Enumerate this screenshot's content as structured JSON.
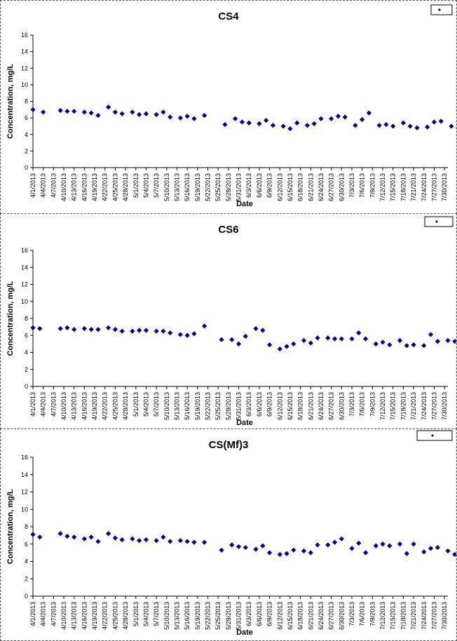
{
  "charts": [
    {
      "chart_data": {
        "type": "scatter",
        "title": "CS4",
        "xlabel": "Date",
        "ylabel": "Concentration, mg/L",
        "ylim": [
          0,
          16
        ],
        "yticks": [
          0,
          2,
          4,
          6,
          8,
          10,
          12,
          14,
          16
        ],
        "xticks": [
          "4/1/2013",
          "4/4/2013",
          "4/7/2013",
          "4/10/2013",
          "4/13/2013",
          "4/16/2013",
          "4/19/2013",
          "4/22/2013",
          "4/25/2013",
          "4/28/2013",
          "5/1/2013",
          "5/4/2013",
          "5/7/2013",
          "5/10/2013",
          "5/13/2013",
          "5/16/2013",
          "5/19/2013",
          "5/22/2013",
          "5/25/2013",
          "5/28/2013",
          "5/31/2013",
          "6/3/2013",
          "6/6/2013",
          "6/9/2013",
          "6/12/2013",
          "6/15/2013",
          "6/18/2013",
          "6/21/2013",
          "6/24/2013",
          "6/27/2013",
          "6/30/2013",
          "7/3/2013",
          "7/6/2013",
          "7/9/2013",
          "7/12/2013",
          "7/15/2013",
          "7/18/2013",
          "7/21/2013",
          "7/24/2013",
          "7/27/2013",
          "7/30/2013"
        ],
        "xlim": [
          "4/1/2013",
          "7/31/2013"
        ],
        "grid": false,
        "legend": "top-right",
        "marker_color": "#00008B",
        "series": [
          {
            "points": [
              [
                "4/1/2013",
                7.0
              ],
              [
                "4/4/2013",
                6.7
              ],
              [
                "4/9/2013",
                6.9
              ],
              [
                "4/11/2013",
                6.8
              ],
              [
                "4/13/2013",
                6.8
              ],
              [
                "4/16/2013",
                6.7
              ],
              [
                "4/18/2013",
                6.6
              ],
              [
                "4/20/2013",
                6.3
              ],
              [
                "4/23/2013",
                7.3
              ],
              [
                "4/25/2013",
                6.7
              ],
              [
                "4/27/2013",
                6.5
              ],
              [
                "4/30/2013",
                6.7
              ],
              [
                "5/2/2013",
                6.4
              ],
              [
                "5/4/2013",
                6.5
              ],
              [
                "5/7/2013",
                6.4
              ],
              [
                "5/9/2013",
                6.7
              ],
              [
                "5/11/2013",
                6.1
              ],
              [
                "5/14/2013",
                6.0
              ],
              [
                "5/16/2013",
                6.2
              ],
              [
                "5/18/2013",
                5.9
              ],
              [
                "5/21/2013",
                6.3
              ],
              [
                "5/27/2013",
                5.2
              ],
              [
                "5/30/2013",
                5.9
              ],
              [
                "6/1/2013",
                5.5
              ],
              [
                "6/3/2013",
                5.4
              ],
              [
                "6/6/2013",
                5.3
              ],
              [
                "6/8/2013",
                5.7
              ],
              [
                "6/10/2013",
                5.1
              ],
              [
                "6/13/2013",
                5.0
              ],
              [
                "6/15/2013",
                4.7
              ],
              [
                "6/17/2013",
                5.4
              ],
              [
                "6/20/2013",
                5.1
              ],
              [
                "6/22/2013",
                5.3
              ],
              [
                "6/24/2013",
                5.9
              ],
              [
                "6/27/2013",
                5.9
              ],
              [
                "6/29/2013",
                6.2
              ],
              [
                "7/1/2013",
                6.1
              ],
              [
                "7/4/2013",
                5.1
              ],
              [
                "7/6/2013",
                5.8
              ],
              [
                "7/8/2013",
                6.6
              ],
              [
                "7/11/2013",
                5.1
              ],
              [
                "7/13/2013",
                5.2
              ],
              [
                "7/15/2013",
                5.0
              ],
              [
                "7/18/2013",
                5.4
              ],
              [
                "7/20/2013",
                5.0
              ],
              [
                "7/22/2013",
                4.8
              ],
              [
                "7/25/2013",
                4.9
              ],
              [
                "7/27/2013",
                5.5
              ],
              [
                "7/29/2013",
                5.6
              ],
              [
                "8/1/2013",
                5.0
              ],
              [
                "8/3/2013",
                4.8
              ]
            ]
          }
        ]
      }
    },
    {
      "chart_data": {
        "type": "scatter",
        "title": "CS6",
        "xlabel": "Date",
        "ylabel": "Concentration, mg/L",
        "ylim": [
          0,
          16
        ],
        "yticks": [
          0,
          2,
          4,
          6,
          8,
          10,
          12,
          14,
          16
        ],
        "xticks": [
          "4/1/2013",
          "4/4/2013",
          "4/7/2013",
          "4/10/2013",
          "4/13/2013",
          "4/16/2013",
          "4/19/2013",
          "4/22/2013",
          "4/25/2013",
          "4/28/2013",
          "5/1/2013",
          "5/4/2013",
          "5/7/2013",
          "5/10/2013",
          "5/13/2013",
          "5/16/2013",
          "5/19/2013",
          "5/22/2013",
          "5/25/2013",
          "5/28/2013",
          "5/31/2013",
          "6/3/2013",
          "6/6/2013",
          "6/9/2013",
          "6/12/2013",
          "6/15/2013",
          "6/18/2013",
          "6/21/2013",
          "6/24/2013",
          "6/27/2013",
          "6/30/2013",
          "7/3/2013",
          "7/6/2013",
          "7/9/2013",
          "7/12/2013",
          "7/15/2013",
          "7/18/2013",
          "7/21/2013",
          "7/24/2013",
          "7/27/2013",
          "7/30/2013"
        ],
        "xlim": [
          "4/1/2013",
          "7/31/2013"
        ],
        "grid": false,
        "legend": "top-right",
        "marker_color": "#00008B",
        "series": [
          {
            "points": [
              [
                "4/1/2013",
                6.9
              ],
              [
                "4/3/2013",
                6.8
              ],
              [
                "4/9/2013",
                6.8
              ],
              [
                "4/11/2013",
                6.9
              ],
              [
                "4/13/2013",
                6.7
              ],
              [
                "4/16/2013",
                6.8
              ],
              [
                "4/18/2013",
                6.7
              ],
              [
                "4/20/2013",
                6.7
              ],
              [
                "4/23/2013",
                6.9
              ],
              [
                "4/25/2013",
                6.7
              ],
              [
                "4/27/2013",
                6.5
              ],
              [
                "4/30/2013",
                6.5
              ],
              [
                "5/2/2013",
                6.6
              ],
              [
                "5/4/2013",
                6.6
              ],
              [
                "5/7/2013",
                6.5
              ],
              [
                "5/9/2013",
                6.5
              ],
              [
                "5/11/2013",
                6.3
              ],
              [
                "5/14/2013",
                6.1
              ],
              [
                "5/16/2013",
                6.0
              ],
              [
                "5/18/2013",
                6.2
              ],
              [
                "5/21/2013",
                7.1
              ],
              [
                "5/26/2013",
                5.5
              ],
              [
                "5/29/2013",
                5.5
              ],
              [
                "5/31/2013",
                5.0
              ],
              [
                "6/2/2013",
                5.9
              ],
              [
                "6/5/2013",
                6.8
              ],
              [
                "6/7/2013",
                6.6
              ],
              [
                "6/9/2013",
                4.9
              ],
              [
                "6/12/2013",
                4.4
              ],
              [
                "6/14/2013",
                4.7
              ],
              [
                "6/16/2013",
                5.0
              ],
              [
                "6/19/2013",
                5.4
              ],
              [
                "6/21/2013",
                5.1
              ],
              [
                "6/23/2013",
                5.7
              ],
              [
                "6/26/2013",
                5.7
              ],
              [
                "6/28/2013",
                5.6
              ],
              [
                "6/30/2013",
                5.6
              ],
              [
                "7/3/2013",
                5.6
              ],
              [
                "7/5/2013",
                6.3
              ],
              [
                "7/7/2013",
                5.6
              ],
              [
                "7/10/2013",
                5.0
              ],
              [
                "7/12/2013",
                5.2
              ],
              [
                "7/14/2013",
                4.9
              ],
              [
                "7/17/2013",
                5.4
              ],
              [
                "7/19/2013",
                4.8
              ],
              [
                "7/21/2013",
                4.9
              ],
              [
                "7/24/2013",
                4.8
              ],
              [
                "7/26/2013",
                6.1
              ],
              [
                "7/28/2013",
                5.3
              ],
              [
                "7/31/2013",
                5.4
              ],
              [
                "8/2/2013",
                5.3
              ]
            ]
          }
        ]
      }
    },
    {
      "chart_data": {
        "type": "scatter",
        "title": "CS(Mf)3",
        "xlabel": "Date",
        "ylabel": "Concentration, mg/L",
        "ylim": [
          0,
          16
        ],
        "yticks": [
          0,
          2,
          4,
          6,
          8,
          10,
          12,
          14,
          16
        ],
        "xticks": [
          "4/1/2013",
          "4/4/2013",
          "4/7/2013",
          "4/10/2013",
          "4/13/2013",
          "4/16/2013",
          "4/19/2013",
          "4/22/2013",
          "4/25/2013",
          "4/28/2013",
          "5/1/2013",
          "5/4/2013",
          "5/7/2013",
          "5/10/2013",
          "5/13/2013",
          "5/16/2013",
          "5/19/2013",
          "5/22/2013",
          "5/25/2013",
          "5/28/2013",
          "5/31/2013",
          "6/3/2013",
          "6/6/2013",
          "6/9/2013",
          "6/12/2013",
          "6/15/2013",
          "6/18/2013",
          "6/21/2013",
          "6/24/2013",
          "6/27/2013",
          "6/30/2013",
          "7/3/2013",
          "7/6/2013",
          "7/9/2013",
          "7/12/2013",
          "7/15/2013",
          "7/18/2013",
          "7/21/2013",
          "7/24/2013",
          "7/27/2013",
          "7/30/2013"
        ],
        "xlim": [
          "4/1/2013",
          "7/31/2013"
        ],
        "grid": false,
        "legend": "top-right",
        "marker_color": "#00008B",
        "series": [
          {
            "points": [
              [
                "4/1/2013",
                7.1
              ],
              [
                "4/3/2013",
                6.8
              ],
              [
                "4/9/2013",
                7.2
              ],
              [
                "4/11/2013",
                6.9
              ],
              [
                "4/13/2013",
                6.8
              ],
              [
                "4/16/2013",
                6.6
              ],
              [
                "4/18/2013",
                6.8
              ],
              [
                "4/20/2013",
                6.3
              ],
              [
                "4/23/2013",
                7.2
              ],
              [
                "4/25/2013",
                6.7
              ],
              [
                "4/27/2013",
                6.5
              ],
              [
                "4/30/2013",
                6.6
              ],
              [
                "5/2/2013",
                6.4
              ],
              [
                "5/4/2013",
                6.5
              ],
              [
                "5/7/2013",
                6.4
              ],
              [
                "5/9/2013",
                6.8
              ],
              [
                "5/11/2013",
                6.3
              ],
              [
                "5/14/2013",
                6.4
              ],
              [
                "5/16/2013",
                6.3
              ],
              [
                "5/18/2013",
                6.2
              ],
              [
                "5/21/2013",
                6.2
              ],
              [
                "5/26/2013",
                5.3
              ],
              [
                "5/29/2013",
                5.9
              ],
              [
                "5/31/2013",
                5.7
              ],
              [
                "6/2/2013",
                5.6
              ],
              [
                "6/5/2013",
                5.4
              ],
              [
                "6/7/2013",
                5.8
              ],
              [
                "6/9/2013",
                5.0
              ],
              [
                "6/12/2013",
                4.8
              ],
              [
                "6/14/2013",
                4.9
              ],
              [
                "6/16/2013",
                5.3
              ],
              [
                "6/19/2013",
                5.2
              ],
              [
                "6/21/2013",
                5.0
              ],
              [
                "6/23/2013",
                5.9
              ],
              [
                "6/26/2013",
                5.9
              ],
              [
                "6/28/2013",
                6.2
              ],
              [
                "6/30/2013",
                6.6
              ],
              [
                "7/3/2013",
                5.5
              ],
              [
                "7/5/2013",
                6.1
              ],
              [
                "7/7/2013",
                5.0
              ],
              [
                "7/10/2013",
                5.8
              ],
              [
                "7/12/2013",
                6.0
              ],
              [
                "7/14/2013",
                5.8
              ],
              [
                "7/17/2013",
                6.0
              ],
              [
                "7/19/2013",
                4.9
              ],
              [
                "7/21/2013",
                6.0
              ],
              [
                "7/24/2013",
                5.1
              ],
              [
                "7/26/2013",
                5.5
              ],
              [
                "7/28/2013",
                5.6
              ],
              [
                "7/31/2013",
                5.2
              ],
              [
                "8/2/2013",
                4.8
              ]
            ]
          }
        ]
      }
    }
  ]
}
